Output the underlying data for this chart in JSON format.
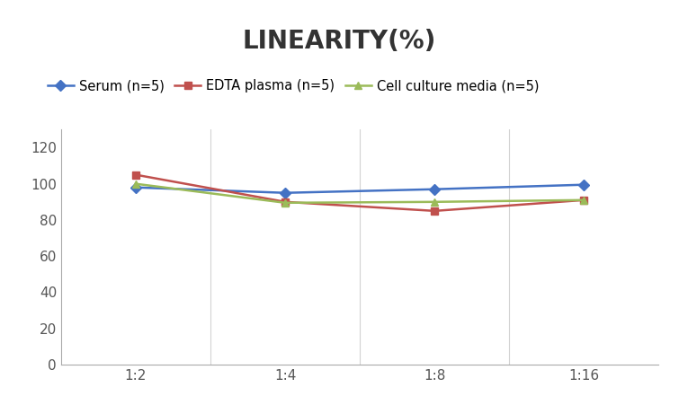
{
  "title": "LINEARITY(%)",
  "x_labels": [
    "1:2",
    "1:4",
    "1:8",
    "1:16"
  ],
  "x_positions": [
    0,
    1,
    2,
    3
  ],
  "series": [
    {
      "label": "Serum (n=5)",
      "values": [
        98,
        95,
        97,
        99.5
      ],
      "color": "#4472C4",
      "marker": "D",
      "linewidth": 1.8,
      "markersize": 6
    },
    {
      "label": "EDTA plasma (n=5)",
      "values": [
        105,
        90,
        85,
        91
      ],
      "color": "#C0504D",
      "marker": "s",
      "linewidth": 1.8,
      "markersize": 6
    },
    {
      "label": "Cell culture media (n=5)",
      "values": [
        100,
        89.5,
        90,
        91
      ],
      "color": "#9BBB59",
      "marker": "^",
      "linewidth": 1.8,
      "markersize": 6
    }
  ],
  "ylim": [
    0,
    130
  ],
  "yticks": [
    0,
    20,
    40,
    60,
    80,
    100,
    120
  ],
  "title_fontsize": 20,
  "legend_fontsize": 10.5,
  "tick_fontsize": 11,
  "background_color": "#FFFFFF",
  "grid_color": "#D3D3D3"
}
